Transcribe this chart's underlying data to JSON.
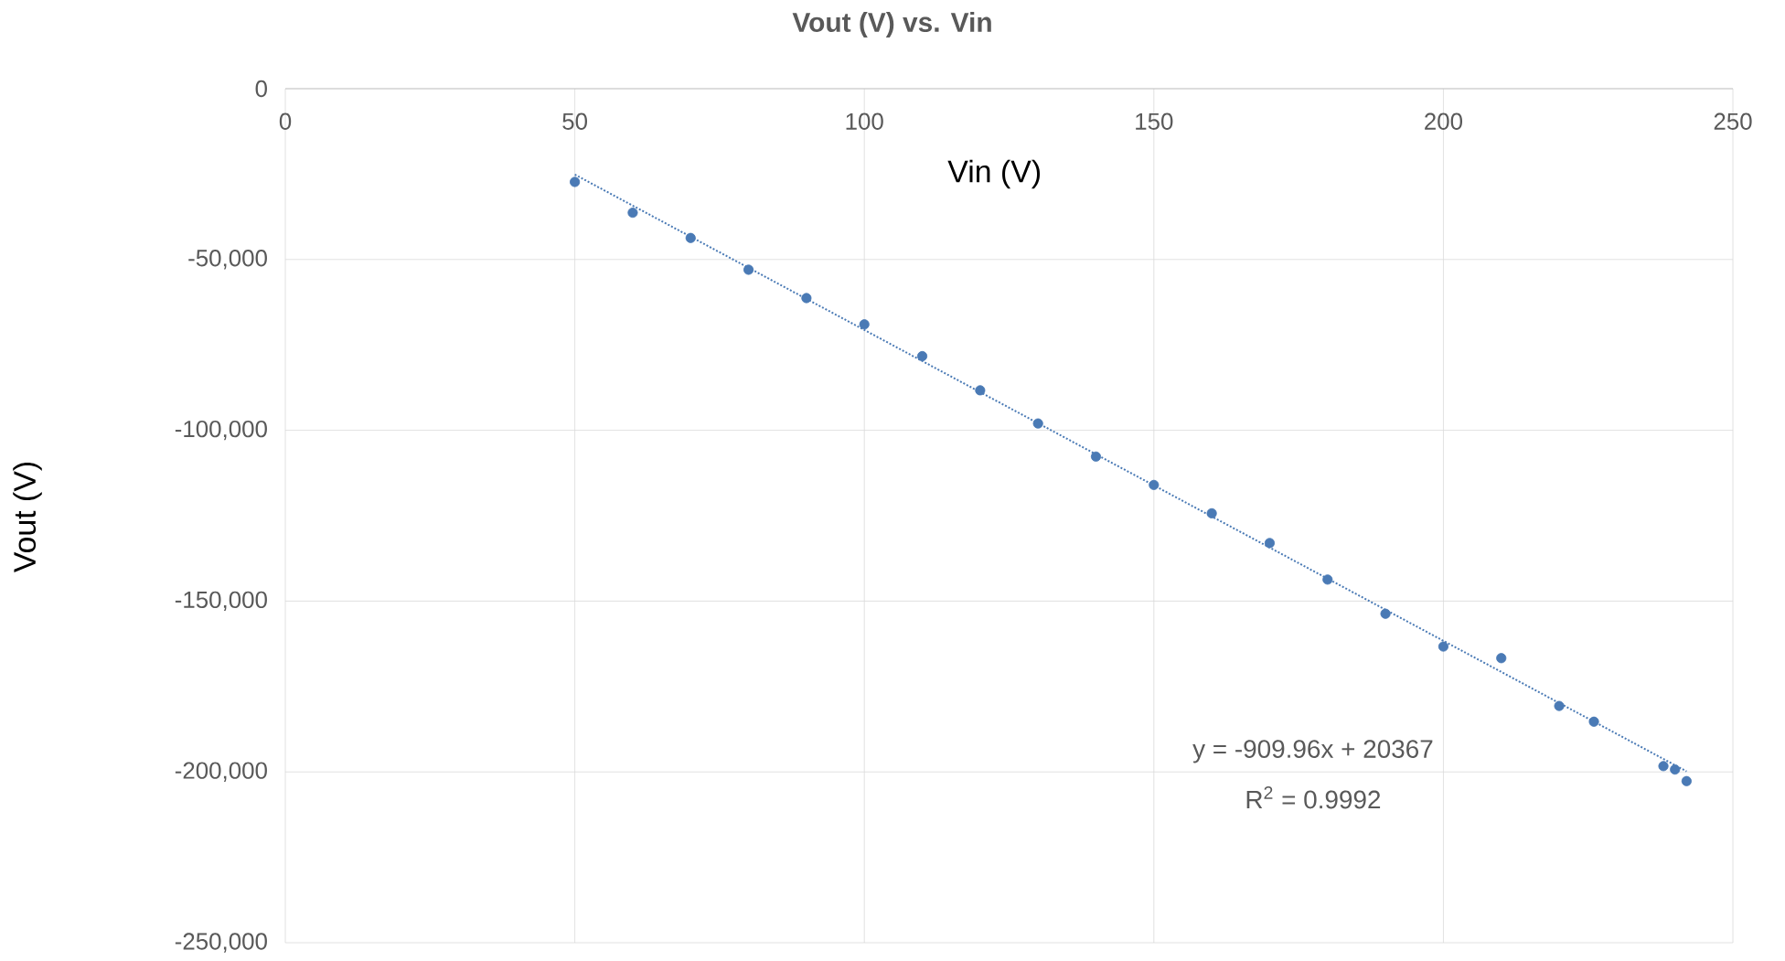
{
  "chart_data": {
    "type": "scatter",
    "title": "Vout (V) vs. Vin",
    "xlabel": "Vin (V)",
    "ylabel": "Vout (V)",
    "xlim": [
      0,
      250
    ],
    "ylim": [
      -250000,
      0
    ],
    "xticks": [
      0,
      50,
      100,
      150,
      200,
      250
    ],
    "yticks": [
      {
        "value": -250000,
        "label": "-250,000"
      },
      {
        "value": -200000,
        "label": "-200,000"
      },
      {
        "value": -150000,
        "label": "-150,000"
      },
      {
        "value": -100000,
        "label": "-100,000"
      },
      {
        "value": -50000,
        "label": "-50,000"
      },
      0
    ],
    "grid": true,
    "series": [
      {
        "marker": "circle",
        "color": "#4a7ab5",
        "x": [
          50,
          60,
          70,
          80,
          90,
          100,
          110,
          120,
          130,
          140,
          150,
          160,
          170,
          180,
          190,
          200,
          210,
          220,
          226,
          238,
          240,
          242
        ],
        "values": [
          -27300,
          -36300,
          -43700,
          -53000,
          -61300,
          -69000,
          -78300,
          -88300,
          -98000,
          -107700,
          -116000,
          -124300,
          -133000,
          -143700,
          -153700,
          -163300,
          -166700,
          -180700,
          -185300,
          -198300,
          -199300,
          -202700
        ]
      },
      {
        "type": "line",
        "line_style": "dotted",
        "marker": "none",
        "color": "#4a7ab5",
        "x": [
          50,
          242
        ],
        "values": [
          -25131,
          -199845
        ]
      }
    ],
    "annotations": [
      "y = -909.96x + 20367",
      "R$^{2}$ = 0.9992"
    ]
  }
}
